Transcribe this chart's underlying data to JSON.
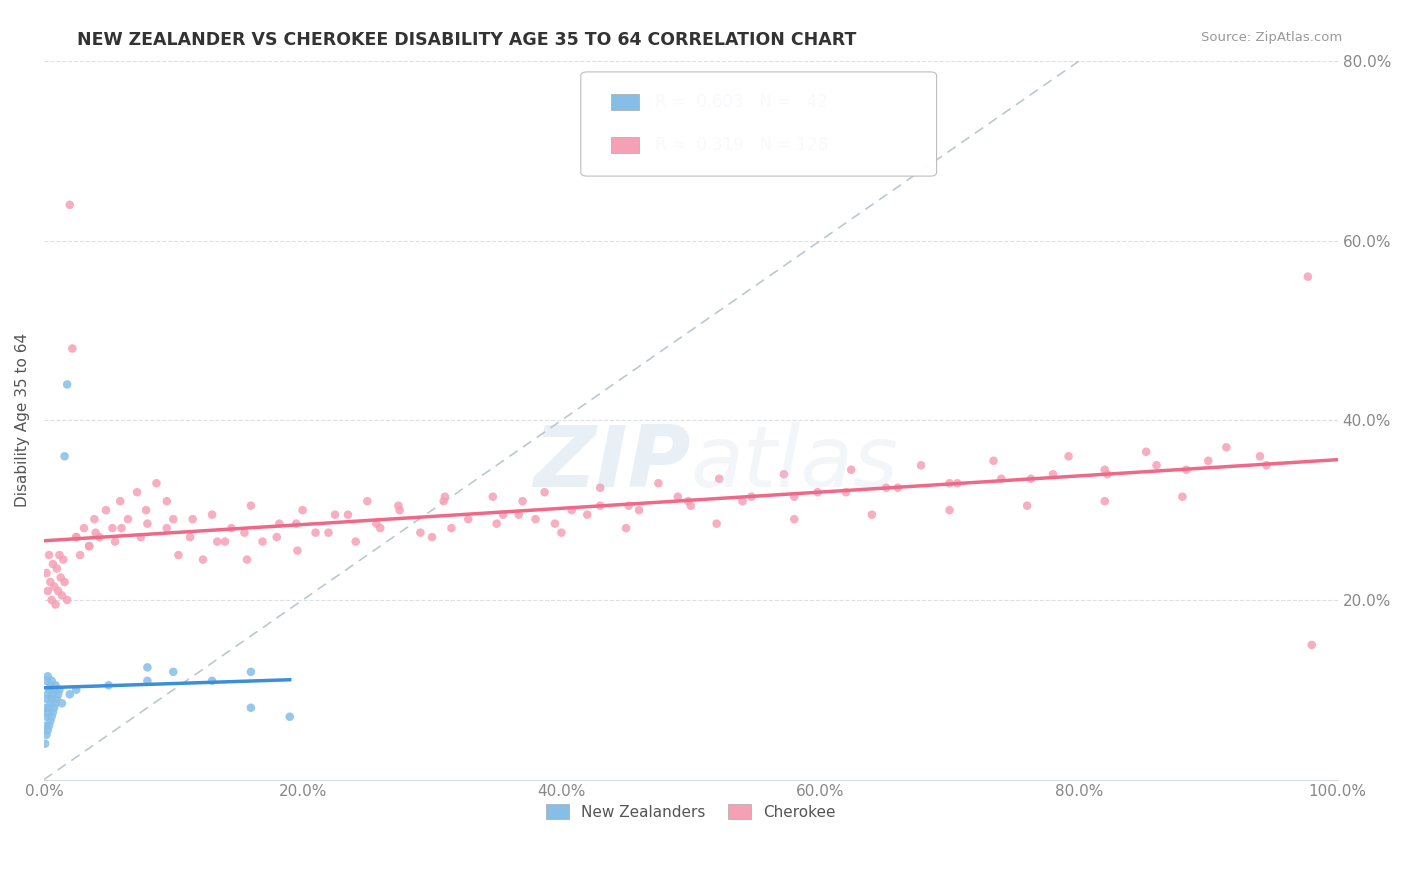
{
  "title": "NEW ZEALANDER VS CHEROKEE DISABILITY AGE 35 TO 64 CORRELATION CHART",
  "source": "Source: ZipAtlas.com",
  "ylabel": "Disability Age 35 to 64",
  "xlim": [
    0,
    1.0
  ],
  "ylim": [
    0,
    0.8
  ],
  "xticks": [
    0.0,
    0.2,
    0.4,
    0.6,
    0.8,
    1.0
  ],
  "yticks": [
    0.0,
    0.2,
    0.4,
    0.6,
    0.8
  ],
  "xticklabels": [
    "0.0%",
    "20.0%",
    "40.0%",
    "60.0%",
    "80.0%",
    "100.0%"
  ],
  "yticklabels_right": [
    "",
    "20.0%",
    "40.0%",
    "60.0%",
    "80.0%"
  ],
  "r_nz": "0.603",
  "n_nz": "42",
  "r_ch": "0.319",
  "n_ch": "128",
  "nz_color": "#85bfe8",
  "ch_color": "#f5a0b5",
  "nz_line_color": "#3a8fd8",
  "ch_line_color": "#f06888",
  "ref_line_color": "#b0bec8",
  "background_color": "#ffffff",
  "grid_color": "#d8dde2",
  "title_color": "#333333",
  "source_color": "#999999",
  "tick_color": "#888888",
  "legend_text_color": "#3366cc",
  "nz_x": [
    0.001,
    0.001,
    0.001,
    0.002,
    0.002,
    0.002,
    0.002,
    0.003,
    0.003,
    0.003,
    0.003,
    0.004,
    0.004,
    0.004,
    0.005,
    0.005,
    0.005,
    0.006,
    0.006,
    0.006,
    0.007,
    0.007,
    0.008,
    0.008,
    0.009,
    0.009,
    0.01,
    0.011,
    0.012,
    0.014,
    0.016,
    0.018,
    0.02,
    0.025,
    0.05,
    0.08,
    0.1,
    0.13,
    0.16,
    0.19,
    0.16,
    0.08
  ],
  "nz_y": [
    0.04,
    0.06,
    0.08,
    0.05,
    0.07,
    0.09,
    0.11,
    0.055,
    0.075,
    0.095,
    0.115,
    0.06,
    0.08,
    0.1,
    0.065,
    0.085,
    0.105,
    0.07,
    0.09,
    0.11,
    0.075,
    0.095,
    0.08,
    0.1,
    0.085,
    0.105,
    0.09,
    0.095,
    0.1,
    0.085,
    0.36,
    0.44,
    0.095,
    0.1,
    0.105,
    0.11,
    0.12,
    0.11,
    0.12,
    0.07,
    0.08,
    0.125
  ],
  "ch_x": [
    0.002,
    0.003,
    0.004,
    0.005,
    0.006,
    0.007,
    0.008,
    0.009,
    0.01,
    0.011,
    0.012,
    0.013,
    0.014,
    0.015,
    0.016,
    0.018,
    0.02,
    0.022,
    0.025,
    0.028,
    0.031,
    0.035,
    0.039,
    0.043,
    0.048,
    0.053,
    0.059,
    0.065,
    0.072,
    0.079,
    0.087,
    0.095,
    0.104,
    0.113,
    0.123,
    0.134,
    0.145,
    0.157,
    0.169,
    0.182,
    0.196,
    0.21,
    0.225,
    0.241,
    0.257,
    0.274,
    0.291,
    0.309,
    0.328,
    0.347,
    0.367,
    0.387,
    0.408,
    0.43,
    0.452,
    0.475,
    0.498,
    0.522,
    0.547,
    0.572,
    0.598,
    0.624,
    0.651,
    0.678,
    0.706,
    0.734,
    0.763,
    0.792,
    0.822,
    0.852,
    0.883,
    0.914,
    0.945,
    0.977,
    0.025,
    0.04,
    0.06,
    0.08,
    0.1,
    0.13,
    0.16,
    0.2,
    0.25,
    0.31,
    0.37,
    0.43,
    0.49,
    0.14,
    0.18,
    0.22,
    0.26,
    0.3,
    0.35,
    0.4,
    0.45,
    0.52,
    0.58,
    0.64,
    0.7,
    0.76,
    0.82,
    0.88,
    0.38,
    0.42,
    0.46,
    0.5,
    0.54,
    0.58,
    0.62,
    0.66,
    0.7,
    0.74,
    0.78,
    0.82,
    0.86,
    0.9,
    0.94,
    0.98,
    0.035,
    0.055,
    0.075,
    0.095,
    0.115,
    0.155,
    0.195,
    0.235,
    0.275,
    0.315,
    0.355,
    0.395
  ],
  "ch_y": [
    0.23,
    0.21,
    0.25,
    0.22,
    0.2,
    0.24,
    0.215,
    0.195,
    0.235,
    0.21,
    0.25,
    0.225,
    0.205,
    0.245,
    0.22,
    0.2,
    0.64,
    0.48,
    0.27,
    0.25,
    0.28,
    0.26,
    0.29,
    0.27,
    0.3,
    0.28,
    0.31,
    0.29,
    0.32,
    0.3,
    0.33,
    0.31,
    0.25,
    0.27,
    0.245,
    0.265,
    0.28,
    0.245,
    0.265,
    0.285,
    0.255,
    0.275,
    0.295,
    0.265,
    0.285,
    0.305,
    0.275,
    0.31,
    0.29,
    0.315,
    0.295,
    0.32,
    0.3,
    0.325,
    0.305,
    0.33,
    0.31,
    0.335,
    0.315,
    0.34,
    0.32,
    0.345,
    0.325,
    0.35,
    0.33,
    0.355,
    0.335,
    0.36,
    0.34,
    0.365,
    0.345,
    0.37,
    0.35,
    0.56,
    0.27,
    0.275,
    0.28,
    0.285,
    0.29,
    0.295,
    0.305,
    0.3,
    0.31,
    0.315,
    0.31,
    0.305,
    0.315,
    0.265,
    0.27,
    0.275,
    0.28,
    0.27,
    0.285,
    0.275,
    0.28,
    0.285,
    0.29,
    0.295,
    0.3,
    0.305,
    0.31,
    0.315,
    0.29,
    0.295,
    0.3,
    0.305,
    0.31,
    0.315,
    0.32,
    0.325,
    0.33,
    0.335,
    0.34,
    0.345,
    0.35,
    0.355,
    0.36,
    0.15,
    0.26,
    0.265,
    0.27,
    0.28,
    0.29,
    0.275,
    0.285,
    0.295,
    0.3,
    0.28,
    0.295,
    0.285
  ]
}
